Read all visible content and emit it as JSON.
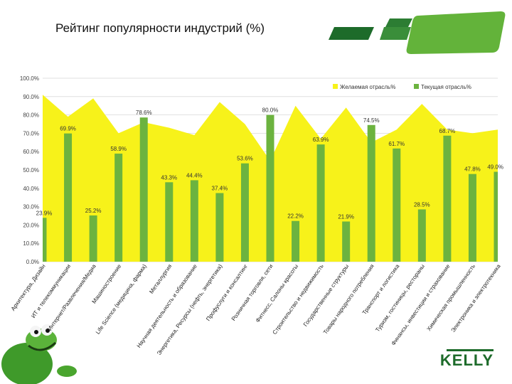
{
  "title": "Рейтинг популярности индустрий (%)",
  "brand": "KELLY",
  "colors": {
    "desired": "#f7f21a",
    "current": "#6cb33f",
    "brand": "#1d6b2a"
  },
  "chart_data": {
    "type": "bar",
    "ylim": [
      0,
      100
    ],
    "yticks": [
      "0.0%",
      "10.0%",
      "20.0%",
      "30.0%",
      "40.0%",
      "50.0%",
      "60.0%",
      "70.0%",
      "80.0%",
      "90.0%",
      "100.0%"
    ],
    "legend": [
      "Желаемая отрасль%",
      "Текущая отрасль%"
    ],
    "legend_position": "top-right",
    "categories": [
      "Архитектура, Дизайн",
      "ИТ и телекоммуникации",
      "Интернет/Развлечения/Медиа",
      "Машиностроение",
      "Life Science (медицина, фарма)",
      "Металлургия",
      "Научная деятельность и образование",
      "Энергетика, Ресурсы (нефть, энергетика)",
      "Профуслуги и консалтинг",
      "Розничная торговля, сети",
      "Фитнесс, Салоны красоты",
      "Строительство и недвижимость",
      "Государственные структуры",
      "Товары народного потребления",
      "Транспорт и логистика",
      "Туризм, гостиницы, рестораны",
      "Финансы, инвестиции и страхование",
      "Химическая промышленность",
      "Электроника и электротехника"
    ],
    "series": [
      {
        "name": "Желаемая отрасль%",
        "values": [
          91,
          79,
          89,
          70,
          76,
          73,
          69,
          87,
          75,
          55,
          85,
          67,
          84,
          65,
          72,
          86,
          72,
          70,
          72
        ]
      },
      {
        "name": "Текущая отрасль%",
        "values": [
          23.9,
          69.9,
          25.2,
          58.9,
          78.6,
          43.3,
          44.4,
          37.4,
          53.6,
          80.0,
          22.2,
          63.9,
          21.9,
          74.5,
          61.7,
          28.5,
          68.7,
          47.8,
          49.0
        ],
        "labels": [
          "23.9%",
          "69.9%",
          "25.2%",
          "58.9%",
          "78.6%",
          "43.3%",
          "44.4%",
          "37.4%",
          "53.6%",
          "80.0%",
          "22.2%",
          "63.9%",
          "21.9%",
          "74.5%",
          "61.7%",
          "28.5%",
          "68.7%",
          "47.8%",
          "49.0%"
        ]
      }
    ]
  }
}
